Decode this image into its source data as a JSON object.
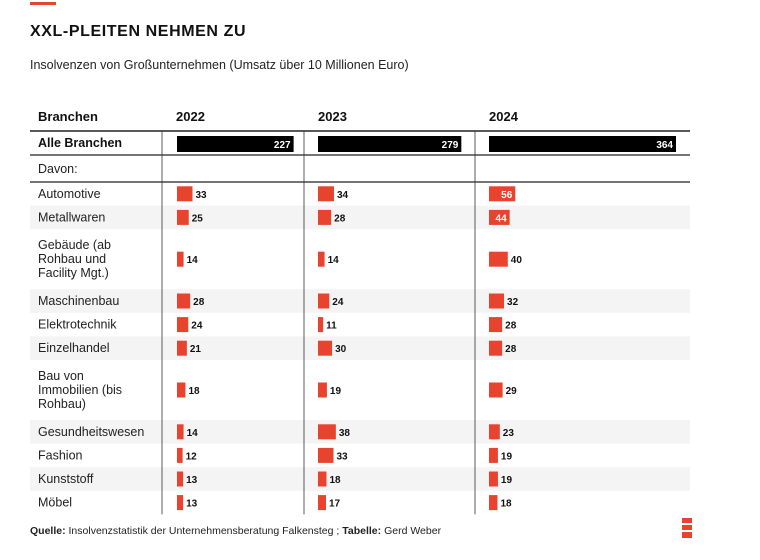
{
  "header": {
    "title": "XXL-PLEITEN NEHMEN ZU",
    "subtitle": "Insolvenzen von Großunternehmen (Umsatz über 10 Millionen Euro)"
  },
  "footer": {
    "source_label": "Quelle:",
    "source_text": " Insolvenzstatistik der Unternehmensberatung Falkensteg ; ",
    "table_label": "Tabelle:",
    "table_text": " Gerd Weber"
  },
  "colors": {
    "accent": "#e8432e",
    "total_bar": "#000000",
    "stripe": "#f4f4f4"
  },
  "chart_data": {
    "type": "table",
    "category_header": "Branchen",
    "years": [
      "2022",
      "2023",
      "2024"
    ],
    "total": {
      "label": "Alle Branchen",
      "values": [
        227,
        279,
        364
      ]
    },
    "subheader": "Davon:",
    "rows": [
      {
        "label": "Automotive",
        "lines": [
          "Automotive"
        ],
        "values": [
          33,
          34,
          56
        ]
      },
      {
        "label": "Metallwaren",
        "lines": [
          "Metallwaren"
        ],
        "values": [
          25,
          28,
          44
        ]
      },
      {
        "label": "Gebäude (ab Rohbau und Facility Mgt.)",
        "lines": [
          "Gebäude (ab",
          "Rohbau und",
          "Facility Mgt.)"
        ],
        "values": [
          14,
          14,
          40
        ]
      },
      {
        "label": "Maschinenbau",
        "lines": [
          "Maschinenbau"
        ],
        "values": [
          28,
          24,
          32
        ]
      },
      {
        "label": "Elektrotechnik",
        "lines": [
          "Elektrotechnik"
        ],
        "values": [
          24,
          11,
          28
        ]
      },
      {
        "label": "Einzelhandel",
        "lines": [
          "Einzelhandel"
        ],
        "values": [
          21,
          30,
          28
        ]
      },
      {
        "label": "Bau von Immobilien (bis Rohbau)",
        "lines": [
          "Bau von",
          "Immobilien (bis",
          "Rohbau)"
        ],
        "values": [
          18,
          19,
          29
        ]
      },
      {
        "label": "Gesundheitswesen",
        "lines": [
          "Gesundheitswesen"
        ],
        "values": [
          14,
          38,
          23
        ]
      },
      {
        "label": "Fashion",
        "lines": [
          "Fashion"
        ],
        "values": [
          12,
          33,
          19
        ]
      },
      {
        "label": "Kunststoff",
        "lines": [
          "Kunststoff"
        ],
        "values": [
          13,
          18,
          19
        ]
      },
      {
        "label": "Möbel",
        "lines": [
          "Möbel"
        ],
        "values": [
          13,
          17,
          18
        ]
      }
    ]
  }
}
